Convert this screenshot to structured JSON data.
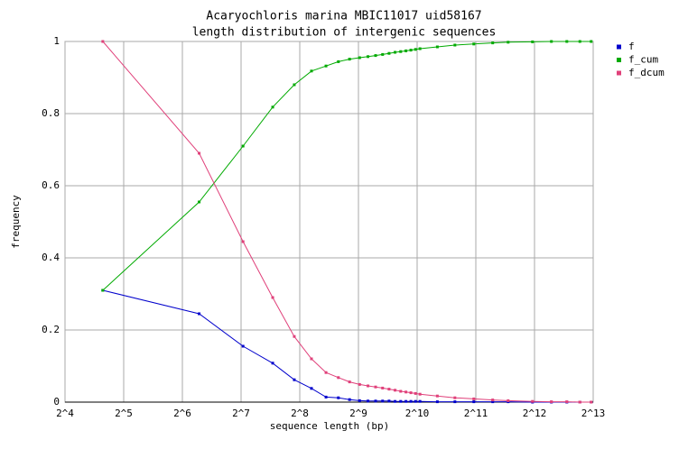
{
  "chart_data": {
    "type": "line",
    "title": "Acaryochloris marina MBIC11017 uid58167",
    "subtitle": "length distribution of intergenic sequences",
    "x_label": "sequence length (bp)",
    "y_label": "frequency",
    "log_x": true,
    "grid": true,
    "legend": "right",
    "xlim": [
      16,
      8192
    ],
    "ylim": [
      0,
      1
    ],
    "xticks": [
      {
        "value": 16,
        "label": "2^4"
      },
      {
        "value": 32,
        "label": "2^5"
      },
      {
        "value": 64,
        "label": "2^6"
      },
      {
        "value": 128,
        "label": "2^7"
      },
      {
        "value": 256,
        "label": "2^8"
      },
      {
        "value": 512,
        "label": "2^9"
      },
      {
        "value": 1024,
        "label": "2^10"
      },
      {
        "value": 2048,
        "label": "2^11"
      },
      {
        "value": 4096,
        "label": "2^12"
      },
      {
        "value": 8192,
        "label": "2^13"
      }
    ],
    "yticks": [
      0,
      0.2,
      0.4,
      0.6,
      0.8,
      1
    ],
    "x": [
      25,
      78,
      131,
      186,
      240,
      294,
      349,
      404,
      461,
      519,
      573,
      627,
      681,
      735,
      789,
      843,
      897,
      951,
      1005,
      1059,
      1300,
      1600,
      2000,
      2500,
      3000,
      4000,
      5000,
      6000,
      7000,
      8000
    ],
    "series": [
      {
        "name": "f",
        "color": "#0000cc",
        "values": [
          0.31,
          0.245,
          0.155,
          0.108,
          0.062,
          0.038,
          0.014,
          0.012,
          0.007,
          0.004,
          0.003,
          0.003,
          0.003,
          0.003,
          0.002,
          0.002,
          0.002,
          0.002,
          0.002,
          0.002,
          0.001,
          0.001,
          0.001,
          0.001,
          0.001,
          0,
          0,
          0,
          0,
          0
        ]
      },
      {
        "name": "f_cum",
        "color": "#00aa00",
        "values": [
          0.31,
          0.555,
          0.71,
          0.818,
          0.88,
          0.918,
          0.932,
          0.944,
          0.951,
          0.955,
          0.958,
          0.961,
          0.964,
          0.967,
          0.97,
          0.972,
          0.974,
          0.976,
          0.978,
          0.98,
          0.985,
          0.99,
          0.993,
          0.996,
          0.998,
          0.999,
          1,
          1,
          1,
          1
        ]
      },
      {
        "name": "f_dcum",
        "color": "#e0407a",
        "values": [
          1,
          0.69,
          0.445,
          0.29,
          0.182,
          0.12,
          0.082,
          0.068,
          0.056,
          0.049,
          0.045,
          0.042,
          0.039,
          0.036,
          0.033,
          0.03,
          0.028,
          0.026,
          0.024,
          0.022,
          0.017,
          0.012,
          0.009,
          0.006,
          0.004,
          0.002,
          0.001,
          0.001,
          0,
          0
        ]
      }
    ]
  }
}
